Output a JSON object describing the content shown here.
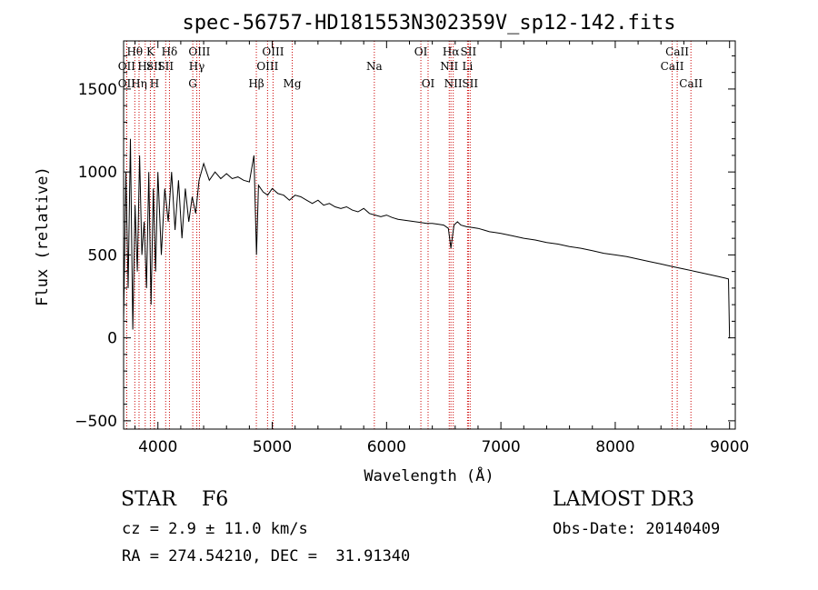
{
  "chart_data": {
    "type": "line",
    "title": "spec-56757-HD181553N302359V_sp12-142.fits",
    "xlabel": "Wavelength (Å)",
    "ylabel": "Flux (relative)",
    "xlim": [
      3700,
      9050
    ],
    "ylim": [
      -550,
      1790
    ],
    "xticks": [
      4000,
      5000,
      6000,
      7000,
      8000,
      9000
    ],
    "yticks": [
      -500,
      0,
      500,
      1000,
      1500
    ],
    "series": [
      {
        "name": "flux",
        "x": [
          3700,
          3720,
          3740,
          3760,
          3780,
          3800,
          3820,
          3840,
          3860,
          3880,
          3900,
          3920,
          3940,
          3960,
          3980,
          4000,
          4030,
          4060,
          4090,
          4120,
          4150,
          4180,
          4210,
          4240,
          4270,
          4300,
          4330,
          4360,
          4400,
          4450,
          4500,
          4550,
          4600,
          4650,
          4700,
          4750,
          4800,
          4840,
          4862,
          4880,
          4920,
          4960,
          5000,
          5050,
          5100,
          5150,
          5200,
          5250,
          5300,
          5350,
          5400,
          5450,
          5500,
          5550,
          5600,
          5650,
          5700,
          5750,
          5800,
          5850,
          5900,
          5950,
          6000,
          6050,
          6100,
          6150,
          6200,
          6250,
          6300,
          6350,
          6400,
          6450,
          6500,
          6540,
          6563,
          6590,
          6620,
          6650,
          6700,
          6750,
          6800,
          6850,
          6900,
          6950,
          7000,
          7100,
          7200,
          7300,
          7400,
          7500,
          7600,
          7700,
          7800,
          7900,
          8000,
          8100,
          8200,
          8300,
          8400,
          8500,
          8600,
          8700,
          8800,
          8900,
          8960,
          8990,
          9000
        ],
        "y": [
          100,
          1000,
          300,
          1200,
          50,
          800,
          400,
          1100,
          500,
          700,
          300,
          1000,
          200,
          900,
          400,
          1000,
          500,
          900,
          700,
          1000,
          650,
          950,
          600,
          900,
          700,
          850,
          750,
          950,
          1050,
          950,
          1000,
          960,
          990,
          960,
          970,
          950,
          940,
          1100,
          500,
          920,
          880,
          860,
          900,
          870,
          860,
          830,
          860,
          850,
          830,
          810,
          830,
          800,
          810,
          790,
          780,
          790,
          770,
          760,
          780,
          750,
          740,
          730,
          740,
          725,
          715,
          710,
          705,
          700,
          695,
          690,
          690,
          685,
          680,
          660,
          540,
          680,
          700,
          680,
          670,
          665,
          660,
          650,
          640,
          635,
          630,
          615,
          600,
          590,
          575,
          565,
          550,
          540,
          525,
          510,
          500,
          490,
          475,
          460,
          445,
          430,
          415,
          400,
          385,
          370,
          360,
          355,
          0
        ]
      }
    ],
    "lines": [
      {
        "label": "OII",
        "x": 3727,
        "row": 2
      },
      {
        "label": "OII",
        "x": 3727,
        "row": 3
      },
      {
        "label": "Hθ",
        "x": 3798,
        "row": 1
      },
      {
        "label": "Hη",
        "x": 3835,
        "row": 3
      },
      {
        "label": "Hε",
        "x": 3889,
        "row": 2
      },
      {
        "label": "K",
        "x": 3934,
        "row": 1
      },
      {
        "label": "SII",
        "x": 3968,
        "row": 2
      },
      {
        "label": "H",
        "x": 3970,
        "row": 3
      },
      {
        "label": "Hδ",
        "x": 4101,
        "row": 1
      },
      {
        "label": "SII",
        "x": 4068,
        "row": 2
      },
      {
        "label": "OIII",
        "x": 4363,
        "row": 1
      },
      {
        "label": "Hγ",
        "x": 4340,
        "row": 2
      },
      {
        "label": "G",
        "x": 4305,
        "row": 3
      },
      {
        "label": "Hβ",
        "x": 4861,
        "row": 3
      },
      {
        "label": "OIII",
        "x": 5007,
        "row": 1
      },
      {
        "label": "OIII",
        "x": 4959,
        "row": 2
      },
      {
        "label": "Mg",
        "x": 5175,
        "row": 3
      },
      {
        "label": "Na",
        "x": 5893,
        "row": 2
      },
      {
        "label": "OI",
        "x": 6300,
        "row": 1
      },
      {
        "label": "OI",
        "x": 6363,
        "row": 3
      },
      {
        "label": "Hα",
        "x": 6563,
        "row": 1
      },
      {
        "label": "NII",
        "x": 6548,
        "row": 2
      },
      {
        "label": "NII",
        "x": 6583,
        "row": 3
      },
      {
        "label": "SII",
        "x": 6716,
        "row": 1
      },
      {
        "label": "Li",
        "x": 6708,
        "row": 2
      },
      {
        "label": "SII",
        "x": 6731,
        "row": 3
      },
      {
        "label": "CaII",
        "x": 8542,
        "row": 1
      },
      {
        "label": "CaII",
        "x": 8498,
        "row": 2
      },
      {
        "label": "CaII",
        "x": 8662,
        "row": 3
      }
    ],
    "line_color": "#000000",
    "marker_color": "#cc0000"
  },
  "info": {
    "class": "STAR    F6",
    "release": "LAMOST DR3",
    "cz": "cz = 2.9 ± 11.0 km/s",
    "obs_date": "Obs-Date: 20140409",
    "radec": "RA = 274.54210, DEC =  31.91340"
  }
}
